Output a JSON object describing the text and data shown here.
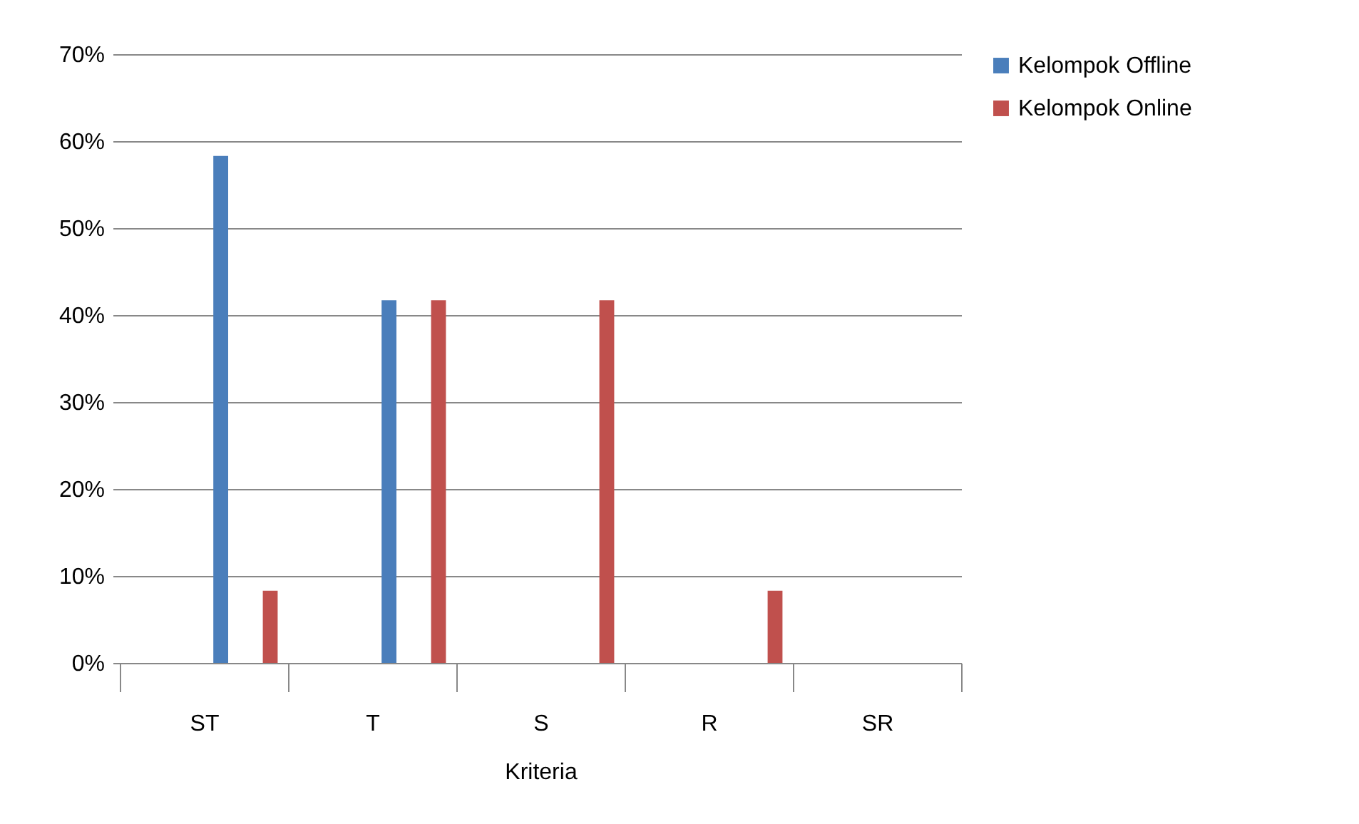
{
  "chart_data": {
    "type": "bar",
    "xlabel": "Kriteria",
    "categories": [
      "ST",
      "T",
      "S",
      "R",
      "SR"
    ],
    "series": [
      {
        "name": "Kelompok Offline",
        "color": "#4a7ebb",
        "values": [
          58.3,
          41.7,
          0,
          0,
          0
        ]
      },
      {
        "name": "Kelompok Online",
        "color": "#c0504d",
        "values": [
          8.3,
          41.7,
          41.7,
          8.3,
          0
        ]
      }
    ],
    "ylim": [
      0,
      70
    ],
    "yticks": [
      {
        "value": 0,
        "label": "0%"
      },
      {
        "value": 10,
        "label": "10%"
      },
      {
        "value": 20,
        "label": "20%"
      },
      {
        "value": 30,
        "label": "30%"
      },
      {
        "value": 40,
        "label": "40%"
      },
      {
        "value": 50,
        "label": "50%"
      },
      {
        "value": 60,
        "label": "60%"
      },
      {
        "value": 70,
        "label": "70%"
      }
    ],
    "grid": "y",
    "legend": "right"
  }
}
